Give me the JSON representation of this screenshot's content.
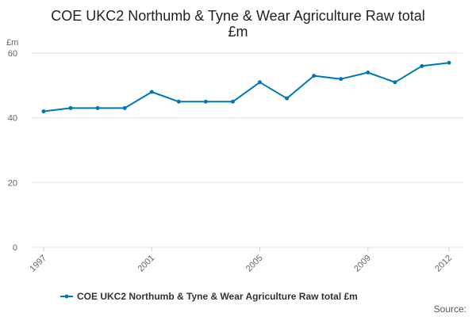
{
  "chart_data": {
    "type": "line",
    "title_line1": "COE UKC2 Northumb & Tyne & Wear Agriculture Raw total",
    "title_line2": "£m",
    "y_unit": "£m",
    "x": [
      1997,
      1998,
      1999,
      2000,
      2001,
      2002,
      2003,
      2004,
      2005,
      2006,
      2007,
      2008,
      2009,
      2010,
      2011,
      2012
    ],
    "x_tick_labels": [
      "1997",
      "2001",
      "2005",
      "2009",
      "2012"
    ],
    "y_ticks": [
      0,
      20,
      40,
      60
    ],
    "ylim": [
      0,
      60
    ],
    "grid": true,
    "legend_position": "bottom",
    "series": [
      {
        "name": "COE UKC2 Northumb & Tyne & Wear Agriculture Raw total £m",
        "color": "#0077bb",
        "values": [
          42,
          43,
          43,
          43,
          48,
          45,
          45,
          45,
          51,
          46,
          53,
          52,
          54,
          51,
          56,
          57
        ]
      }
    ]
  },
  "source_label": "Source:"
}
